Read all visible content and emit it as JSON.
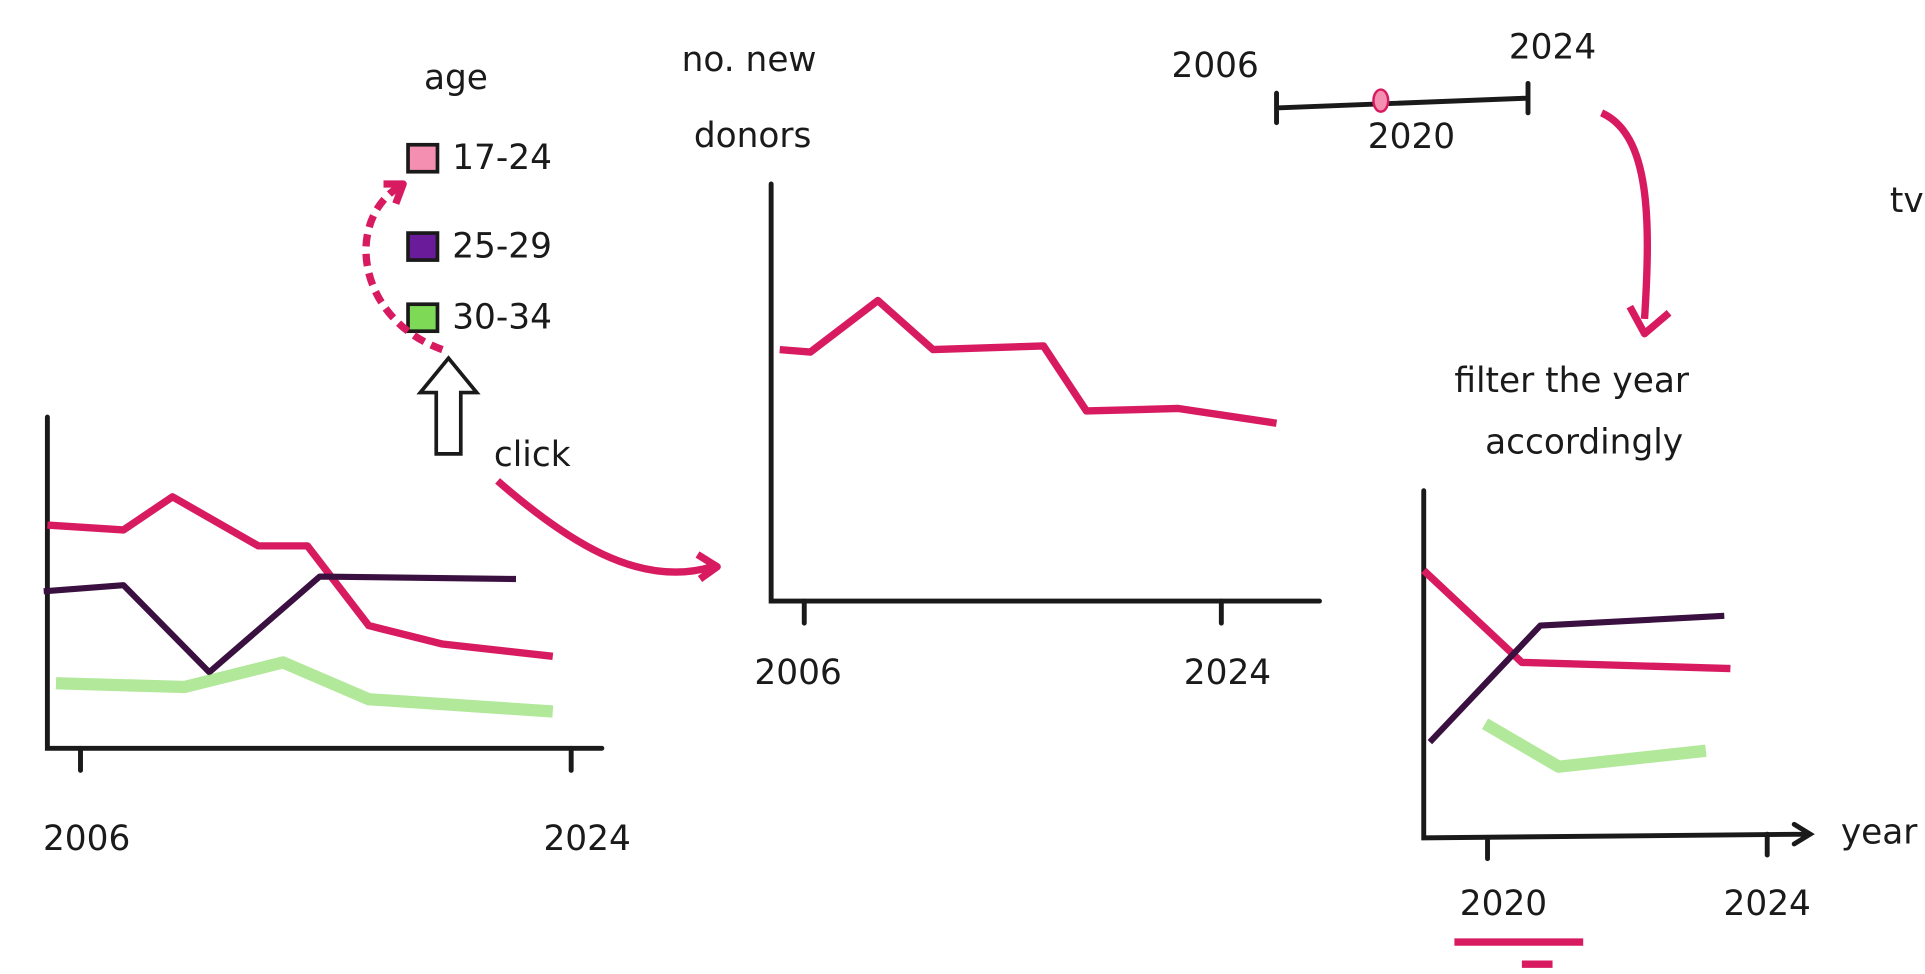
{
  "legend": {
    "title": "age",
    "items": [
      "17-24",
      "25-29",
      "30-34"
    ]
  },
  "click_note": "click",
  "left_chart": {
    "x_start": "2006",
    "x_end": "2024"
  },
  "middle_chart": {
    "y_label": [
      "no. new",
      "donors"
    ],
    "x_start": "2006",
    "x_end": "2024"
  },
  "slider": {
    "start": "2006",
    "end": "2024",
    "value": "2020"
  },
  "filter_note": [
    "filter the year",
    "accordingly"
  ],
  "right_chart": {
    "x_start": "2020",
    "x_end": "2024",
    "x_label": "year"
  },
  "cut_text": "tve"
}
